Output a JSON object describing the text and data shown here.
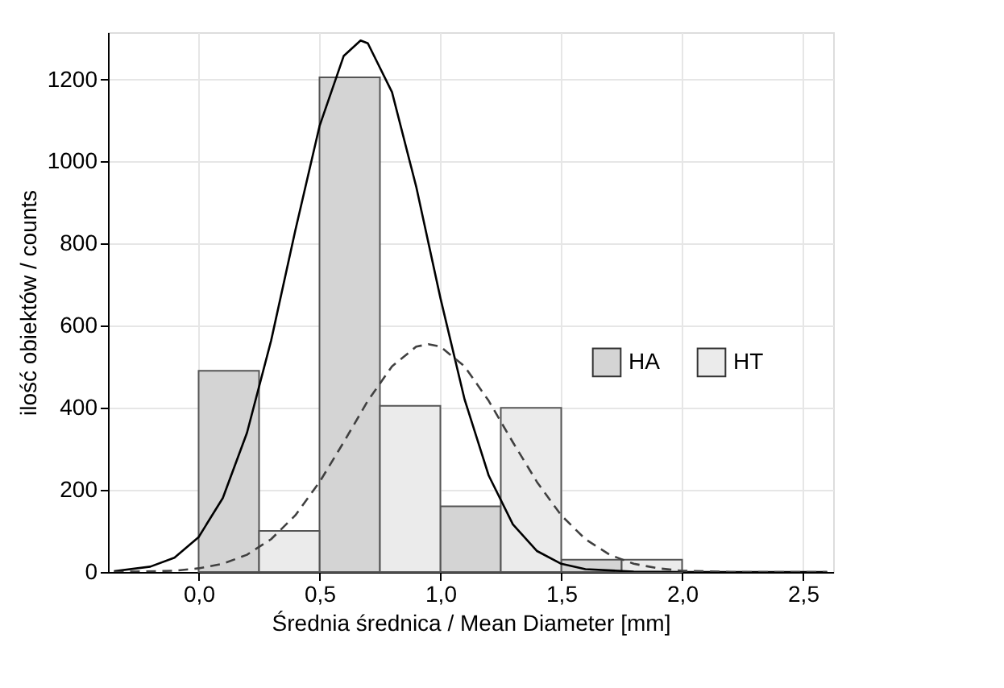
{
  "chart_data": {
    "type": "histogram",
    "xlabel": "Średnia średnica / Mean Diameter [mm]",
    "ylabel": "ilość obiektów / counts",
    "bins": [
      0,
      0.25,
      0.5,
      0.75,
      1.0,
      1.25,
      1.5,
      1.75,
      2.0
    ],
    "series": [
      {
        "name": "HA",
        "color": "#d4d4d4",
        "values": [
          490,
          null,
          1205,
          null,
          160,
          null,
          30,
          null
        ]
      },
      {
        "name": "HT",
        "color": "#ebebeb",
        "values": [
          null,
          100,
          null,
          405,
          null,
          400,
          null,
          30
        ]
      },
      {
        "type": "line",
        "color": "#000000",
        "line_style": "solid",
        "x": [
          -0.35,
          -0.2,
          -0.1,
          0.0,
          0.1,
          0.2,
          0.3,
          0.4,
          0.5,
          0.6,
          0.67,
          0.7,
          0.8,
          0.9,
          1.0,
          1.1,
          1.2,
          1.3,
          1.4,
          1.5,
          1.6,
          1.8,
          2.0,
          2.6
        ],
        "values": [
          2,
          13,
          35,
          85,
          180,
          339,
          564,
          832,
          1086,
          1257,
          1295,
          1288,
          1169,
          939,
          668,
          421,
          235,
          116,
          51,
          20,
          7,
          1,
          0,
          0
        ]
      },
      {
        "type": "line",
        "color": "#404040",
        "line_style": "dashed",
        "x": [
          -0.35,
          -0.1,
          0.0,
          0.1,
          0.2,
          0.3,
          0.4,
          0.5,
          0.6,
          0.7,
          0.8,
          0.9,
          0.95,
          1.0,
          1.1,
          1.2,
          1.3,
          1.4,
          1.5,
          1.6,
          1.7,
          1.8,
          1.9,
          2.0,
          2.2,
          2.6
        ],
        "values": [
          0,
          3,
          9,
          20,
          42,
          80,
          138,
          219,
          316,
          417,
          501,
          549,
          555,
          549,
          501,
          417,
          316,
          219,
          138,
          80,
          42,
          20,
          9,
          3,
          0,
          0
        ]
      }
    ],
    "xlim": [
      -0.375,
      2.625
    ],
    "ylim": [
      0,
      1315
    ],
    "xticks": [
      {
        "value": 0,
        "label": "0,0"
      },
      {
        "value": 0.5,
        "label": "0,5"
      },
      {
        "value": 1.0,
        "label": "1,0"
      },
      {
        "value": 1.5,
        "label": "1,5"
      },
      {
        "value": 2.0,
        "label": "2,0"
      },
      {
        "value": 2.5,
        "label": "2,5"
      }
    ],
    "yticks": [
      0,
      200,
      400,
      600,
      800,
      1000,
      1200
    ],
    "grid": true,
    "legend": "right",
    "marker": "none"
  }
}
